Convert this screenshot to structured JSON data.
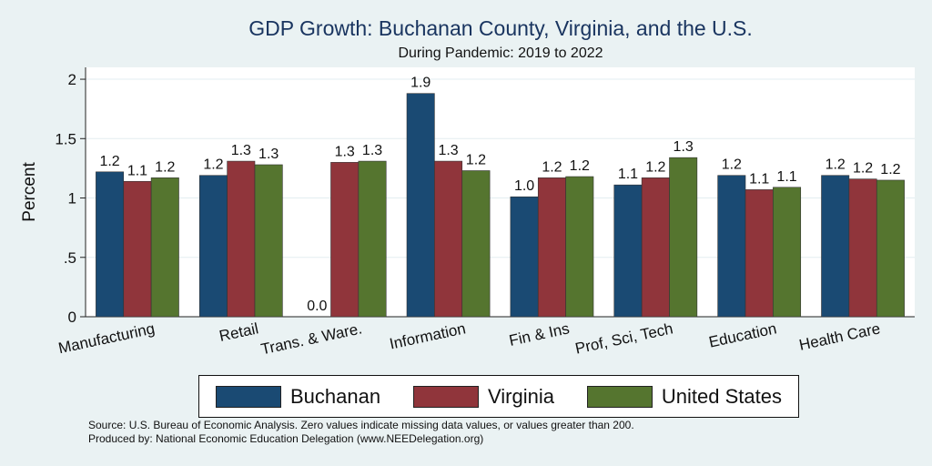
{
  "colors": {
    "background": "#eaf2f3",
    "plot_background": "#ffffff",
    "title": "#1a3560",
    "gridline": "#e3eef0"
  },
  "chart_data": {
    "type": "bar",
    "title": "GDP Growth: Buchanan County, Virginia, and the U.S.",
    "subtitle": "During Pandemic: 2019 to 2022",
    "xlabel": "",
    "ylabel": "Percent",
    "ylim": [
      0,
      2.1
    ],
    "yticks": [
      0,
      0.5,
      1,
      1.5,
      2
    ],
    "ytick_labels": [
      "0",
      ".5",
      "1",
      "1.5",
      "2"
    ],
    "grid": true,
    "legend_position": "bottom",
    "categories": [
      "Manufacturing",
      "Retail",
      "Trans. & Ware.",
      "Information",
      "Fin & Ins",
      "Prof, Sci, Tech",
      "Education",
      "Health Care"
    ],
    "series": [
      {
        "name": "Buchanan",
        "color": "#1a4a73",
        "values": [
          1.22,
          1.19,
          0,
          1.88,
          1.01,
          1.11,
          1.19,
          1.19
        ],
        "labels": [
          "1.2",
          "1.2",
          "0.0",
          "1.9",
          "1.0",
          "1.1",
          "1.2",
          "1.2"
        ]
      },
      {
        "name": "Virginia",
        "color": "#90353b",
        "values": [
          1.14,
          1.31,
          1.3,
          1.31,
          1.17,
          1.17,
          1.07,
          1.16
        ],
        "labels": [
          "1.1",
          "1.3",
          "1.3",
          "1.3",
          "1.2",
          "1.2",
          "1.1",
          "1.2"
        ]
      },
      {
        "name": "United States",
        "color": "#55752f",
        "values": [
          1.17,
          1.28,
          1.31,
          1.23,
          1.18,
          1.34,
          1.09,
          1.15
        ],
        "labels": [
          "1.2",
          "1.3",
          "1.3",
          "1.2",
          "1.2",
          "1.3",
          "1.1",
          "1.2"
        ]
      }
    ]
  },
  "notes": {
    "source": "Source: U.S. Bureau of Economic Analysis. Zero values indicate missing data values, or values greater than 200.",
    "produced_by": "Produced by: National Economic Education Delegation (www.NEEDelegation.org)"
  }
}
